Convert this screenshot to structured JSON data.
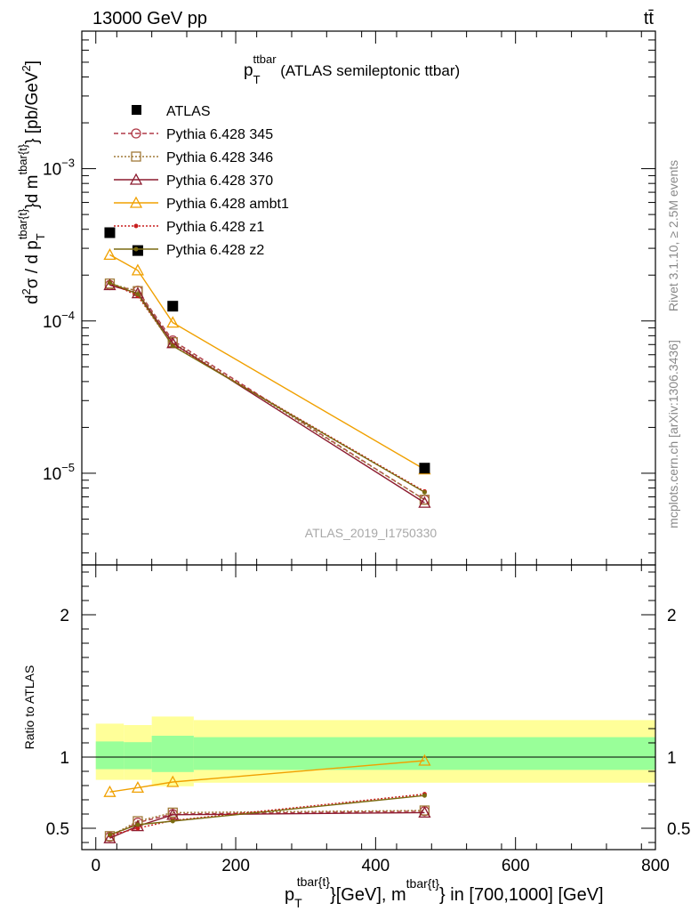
{
  "header": {
    "left": "13000 GeV pp",
    "right": "tt̄"
  },
  "title": {
    "main": "p",
    "sub": "T",
    "sup": "ttbar",
    "rest": " (ATLAS semileptonic ttbar)"
  },
  "side_labels": {
    "rivet": "Rivet 3.1.10, ≥ 2.5M events",
    "mcplots": "mcplots.cern.ch [arXiv:1306.3436]"
  },
  "watermark": "ATLAS_2019_I1750330",
  "axes": {
    "ylabel_main": "d²σ / d p_T^{tbar{t}}d m^{tbar{t}} [pb/GeV²]",
    "ylabel_ratio": "Ratio to ATLAS",
    "xlabel": "p_T^{tbar{t}}[GeV], m^{tbar{t}} in [700,1000] [GeV]",
    "ylabel_parts": {
      "a": "d",
      "a_sup": "2",
      "b": "σ / d p",
      "b_sub": "T",
      "b_sup": "tbar{t}",
      "c": "}d m",
      "c_sup": "tbar{t}",
      "d": "} [pb/GeV",
      "d_sup": "2",
      "e": "]"
    },
    "xlabel_parts": {
      "a": "p",
      "a_sub": "T",
      "a_sup": "tbar{t}",
      "b": "}[GeV], m",
      "b_sup": "tbar{t}",
      "c": "} in [700,1000] [GeV]"
    }
  },
  "chart_data": [
    {
      "type": "scatter",
      "panel": "main",
      "yscale": "log",
      "xlim": [
        -20,
        800
      ],
      "ylim": [
        2.5e-06,
        0.008
      ],
      "x_ticks": [
        0,
        200,
        400,
        600,
        800
      ],
      "y_ticks": [
        {
          "value": 1e-05,
          "label": "10",
          "exp": "−5"
        },
        {
          "value": 0.0001,
          "label": "10",
          "exp": "−4"
        },
        {
          "value": 0.001,
          "label": "10",
          "exp": "−3"
        }
      ],
      "legend_position": "top-left",
      "data": {
        "name": "ATLAS",
        "x": [
          20,
          60,
          110,
          470
        ],
        "y": [
          0.00038,
          0.00029,
          0.000125,
          1.08e-05
        ]
      },
      "series": [
        {
          "name": "Pythia 6.428 345",
          "color": "#b03a48",
          "style": "dashed",
          "marker": "circle",
          "y": [
            0.000172,
            0.000158,
            7.45e-05,
            6.7e-06
          ]
        },
        {
          "name": "Pythia 6.428 346",
          "color": "#a07a38",
          "style": "dotted",
          "marker": "square",
          "y": [
            0.000176,
            0.000157,
            7.25e-05,
            6.7e-06
          ]
        },
        {
          "name": "Pythia 6.428 370",
          "color": "#8b1a2e",
          "style": "solid",
          "marker": "triangle",
          "y": [
            0.000172,
            0.000152,
            7.15e-05,
            6.4e-06
          ]
        },
        {
          "name": "Pythia 6.428 ambt1",
          "color": "#f0a000",
          "style": "solid",
          "marker": "triangle",
          "y": [
            0.000272,
            0.000215,
            9.75e-05,
            1.06e-05
          ]
        },
        {
          "name": "Pythia 6.428 z1",
          "color": "#c81e1e",
          "style": "dotted",
          "marker": "dot",
          "y": [
            0.000178,
            0.000146,
            6.9e-05,
            7.6e-06
          ]
        },
        {
          "name": "Pythia 6.428 z2",
          "color": "#7a6a10",
          "style": "solid",
          "marker": "dot",
          "y": [
            0.000178,
            0.00015,
            6.85e-05,
            7.5e-06
          ]
        }
      ]
    },
    {
      "type": "line",
      "panel": "ratio",
      "xlim": [
        -20,
        800
      ],
      "ylim": [
        0.35,
        2.35
      ],
      "y_ticks": [
        {
          "value": 0.5,
          "label": "0.5"
        },
        {
          "value": 1,
          "label": "1"
        },
        {
          "value": 2,
          "label": "2"
        }
      ],
      "bins": [
        {
          "lo": 0,
          "hi": 40,
          "inner": [
            0.915,
            1.11
          ],
          "outer": [
            0.84,
            1.235
          ]
        },
        {
          "lo": 40,
          "hi": 80,
          "inner": [
            0.915,
            1.105
          ],
          "outer": [
            0.84,
            1.225
          ]
        },
        {
          "lo": 80,
          "hi": 140,
          "inner": [
            0.895,
            1.15
          ],
          "outer": [
            0.795,
            1.285
          ]
        },
        {
          "lo": 140,
          "hi": 800,
          "inner": [
            0.91,
            1.14
          ],
          "outer": [
            0.82,
            1.26
          ]
        }
      ],
      "series": [
        {
          "name": "Pythia 6.428 345",
          "y": [
            0.44,
            0.54,
            0.6,
            0.62
          ]
        },
        {
          "name": "Pythia 6.428 346",
          "y": [
            0.445,
            0.55,
            0.61,
            0.625
          ]
        },
        {
          "name": "Pythia 6.428 370",
          "y": [
            0.43,
            0.515,
            0.595,
            0.61
          ]
        },
        {
          "name": "Pythia 6.428 ambt1",
          "y": [
            0.755,
            0.785,
            0.825,
            0.975
          ]
        },
        {
          "name": "Pythia 6.428 z1",
          "y": [
            0.45,
            0.5,
            0.555,
            0.74
          ]
        },
        {
          "name": "Pythia 6.428 z2",
          "y": [
            0.455,
            0.525,
            0.55,
            0.73
          ]
        }
      ]
    }
  ]
}
